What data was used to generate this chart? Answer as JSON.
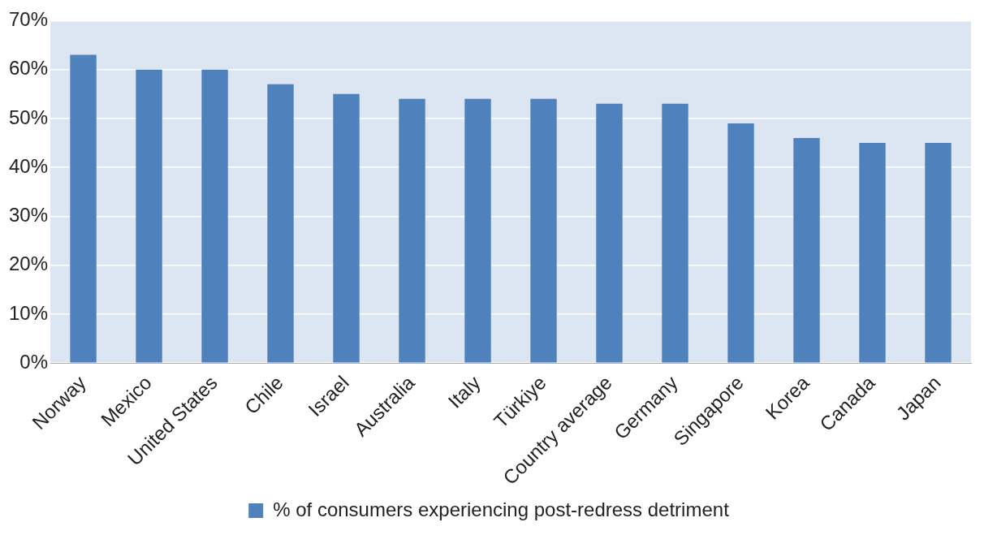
{
  "chart_data": {
    "type": "bar",
    "categories": [
      "Norway",
      "Mexico",
      "United States",
      "Chile",
      "Israel",
      "Australia",
      "Italy",
      "Türkiye",
      "Country average",
      "Germany",
      "Singapore",
      "Korea",
      "Canada",
      "Japan"
    ],
    "series": [
      {
        "name": "% of consumers experiencing post-redress detriment",
        "color": "#4f81bd",
        "values": [
          63,
          60,
          60,
          57,
          55,
          54,
          54,
          54,
          53,
          53,
          49,
          46,
          45,
          45
        ]
      }
    ],
    "ylim": [
      0,
      70
    ],
    "yticks": [
      {
        "value": 0,
        "label": "0%"
      },
      {
        "value": 10,
        "label": "10%"
      },
      {
        "value": 20,
        "label": "20%"
      },
      {
        "value": 30,
        "label": "30%"
      },
      {
        "value": 40,
        "label": "40%"
      },
      {
        "value": 50,
        "label": "50%"
      },
      {
        "value": 60,
        "label": "60%"
      },
      {
        "value": 70,
        "label": "70%"
      }
    ],
    "grid": "y",
    "legend": "bottom"
  }
}
